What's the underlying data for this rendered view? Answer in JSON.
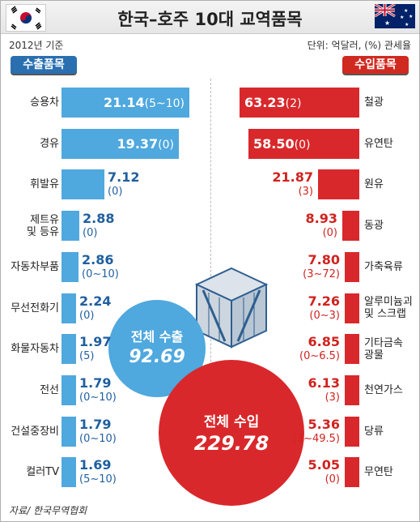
{
  "title": "한국–호주 10대 교역품목",
  "subtitle_year": "2012년 기준",
  "unit_note": "단위: 억달러, (%) 관세율",
  "export_header": "수출품목",
  "import_header": "수입품목",
  "source": "자료/ 한국무역협회",
  "colors": {
    "export": "#4fa8de",
    "import": "#d9282b",
    "export_dark": "#2a6fb0",
    "import_dark": "#d02a20"
  },
  "total_export": {
    "label": "전체 수출",
    "value": "92.69"
  },
  "total_import": {
    "label": "전체 수입",
    "value": "229.78"
  },
  "exports": [
    {
      "name": "승용차",
      "value": "21.14",
      "tariff": "(5~10)"
    },
    {
      "name": "경유",
      "value": "19.37",
      "tariff": "(0)"
    },
    {
      "name": "휘발유",
      "value": "7.12",
      "tariff": "(0)"
    },
    {
      "name": "제트유\n및 등유",
      "value": "2.88",
      "tariff": "(0)"
    },
    {
      "name": "자동차부품",
      "value": "2.86",
      "tariff": "(0~10)"
    },
    {
      "name": "무선전화기",
      "value": "2.24",
      "tariff": "(0)"
    },
    {
      "name": "화물자동차",
      "value": "1.97",
      "tariff": "(5)"
    },
    {
      "name": "전선",
      "value": "1.79",
      "tariff": "(0~10)"
    },
    {
      "name": "건설중장비",
      "value": "1.79",
      "tariff": "(0~10)"
    },
    {
      "name": "컬러TV",
      "value": "1.69",
      "tariff": "(5~10)"
    }
  ],
  "imports": [
    {
      "name": "철광",
      "value": "63.23",
      "tariff": "(2)"
    },
    {
      "name": "유연탄",
      "value": "58.50",
      "tariff": "(0)"
    },
    {
      "name": "원유",
      "value": "21.87",
      "tariff": "(3)"
    },
    {
      "name": "동광",
      "value": "8.93",
      "tariff": "(0)"
    },
    {
      "name": "가축육류",
      "value": "7.80",
      "tariff": "(3~72)"
    },
    {
      "name": "알루미늄괴\n및 스크랩",
      "value": "7.26",
      "tariff": "(0~3)"
    },
    {
      "name": "기타금속\n광물",
      "value": "6.85",
      "tariff": "(0~6.5)"
    },
    {
      "name": "천연가스",
      "value": "6.13",
      "tariff": "(3)"
    },
    {
      "name": "당류",
      "value": "5.36",
      "tariff": "(3~49.5)"
    },
    {
      "name": "무연탄",
      "value": "5.05",
      "tariff": "(0)"
    }
  ],
  "chart_data": {
    "type": "bar",
    "title": "한국–호주 10대 교역품목",
    "series": [
      {
        "name": "수출품목",
        "categories": [
          "승용차",
          "경유",
          "휘발유",
          "제트유 및 등유",
          "자동차부품",
          "무선전화기",
          "화물자동차",
          "전선",
          "건설중장비",
          "컬러TV"
        ],
        "values": [
          21.14,
          19.37,
          7.12,
          2.88,
          2.86,
          2.24,
          1.97,
          1.79,
          1.79,
          1.69
        ],
        "tariffs": [
          "(5~10)",
          "(0)",
          "(0)",
          "(0)",
          "(0~10)",
          "(0)",
          "(5)",
          "(0~10)",
          "(0~10)",
          "(5~10)"
        ]
      },
      {
        "name": "수입품목",
        "categories": [
          "철광",
          "유연탄",
          "원유",
          "동광",
          "가축육류",
          "알루미늄괴 및 스크랩",
          "기타금속 광물",
          "천연가스",
          "당류",
          "무연탄"
        ],
        "values": [
          63.23,
          58.5,
          21.87,
          8.93,
          7.8,
          7.26,
          6.85,
          6.13,
          5.36,
          5.05
        ],
        "tariffs": [
          "(2)",
          "(0)",
          "(3)",
          "(0)",
          "(3~72)",
          "(0~3)",
          "(0~6.5)",
          "(3)",
          "(3~49.5)",
          "(0)"
        ]
      }
    ],
    "totals": {
      "전체 수출": 92.69,
      "전체 수입": 229.78
    },
    "unit": "억달러, (%) 관세율"
  }
}
